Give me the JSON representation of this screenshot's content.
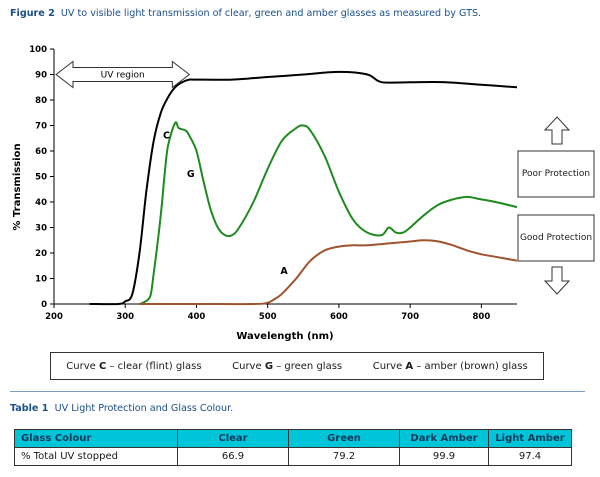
{
  "figure": {
    "label": "Figure 2",
    "text": "UV to visible light transmission of clear, green and amber glasses as measured by GTS."
  },
  "chart_data": {
    "type": "line",
    "xlabel": "Wavelength (nm)",
    "ylabel": "% Transmission",
    "xlim": [
      200,
      850
    ],
    "ylim": [
      0,
      100
    ],
    "xticks": [
      200,
      300,
      400,
      500,
      600,
      700,
      800
    ],
    "yticks": [
      0,
      10,
      20,
      30,
      40,
      50,
      60,
      70,
      80,
      90,
      100
    ],
    "grid": false,
    "colors": {
      "C": "#000000",
      "G": "#1f8a1f",
      "A": "#a0522d"
    },
    "series": [
      {
        "name": "C",
        "x": [
          250,
          290,
          300,
          310,
          320,
          330,
          340,
          350,
          360,
          370,
          380,
          390,
          400,
          450,
          500,
          550,
          600,
          640,
          660,
          700,
          750,
          800,
          850
        ],
        "y": [
          0,
          0,
          1,
          4,
          20,
          45,
          64,
          75,
          81,
          85,
          87,
          88,
          88,
          88,
          89,
          90,
          91,
          90,
          87,
          87,
          87,
          86,
          85
        ]
      },
      {
        "name": "G",
        "x": [
          320,
          325,
          335,
          340,
          350,
          355,
          360,
          370,
          375,
          385,
          390,
          400,
          410,
          420,
          430,
          440,
          450,
          460,
          480,
          500,
          520,
          540,
          550,
          560,
          580,
          600,
          620,
          640,
          660,
          670,
          680,
          690,
          700,
          720,
          740,
          760,
          780,
          800,
          820,
          850
        ],
        "y": [
          0,
          0.5,
          3,
          12,
          35,
          50,
          62,
          71,
          69,
          68,
          66,
          60,
          48,
          37,
          30,
          27,
          27,
          30,
          40,
          53,
          64,
          69,
          70,
          68,
          58,
          44,
          33,
          28,
          27,
          30,
          28,
          28,
          30,
          35,
          39,
          41,
          42,
          41,
          40,
          38
        ]
      },
      {
        "name": "A",
        "x": [
          320,
          400,
          480,
          500,
          510,
          520,
          540,
          560,
          580,
          600,
          620,
          640,
          660,
          680,
          700,
          720,
          740,
          760,
          780,
          800,
          820,
          850
        ],
        "y": [
          0,
          0,
          0,
          0.5,
          2,
          4,
          10,
          17,
          21,
          22.5,
          23,
          23,
          23.5,
          24,
          24.5,
          25,
          24.5,
          23,
          21,
          19.5,
          18.5,
          17
        ]
      }
    ],
    "curve_labels": [
      {
        "text": "C",
        "x": 358,
        "y": 66
      },
      {
        "text": "G",
        "x": 392,
        "y": 51
      },
      {
        "text": "A",
        "x": 523,
        "y": 13
      }
    ],
    "annotations": {
      "uv_region": {
        "label": "UV region",
        "from": 200,
        "to": 390,
        "y": 90
      },
      "poor_protection": "Poor Protection",
      "good_protection": "Good Protection"
    },
    "legend": {
      "placement": "bottom",
      "items": [
        {
          "prefix": "Curve ",
          "bold": "C",
          "suffix": " – clear (flint) glass"
        },
        {
          "prefix": "Curve ",
          "bold": "G",
          "suffix": " – green glass"
        },
        {
          "prefix": "Curve ",
          "bold": "A",
          "suffix": " – amber (brown) glass"
        }
      ]
    }
  },
  "table": {
    "label": "Table 1",
    "text": "UV Light Protection and Glass Colour.",
    "headers": [
      "Glass Colour",
      "Clear",
      "Green",
      "Dark Amber",
      "Light Amber"
    ],
    "rows": [
      [
        "% Total UV stopped",
        "66.9",
        "79.2",
        "99.9",
        "97.4"
      ]
    ]
  }
}
